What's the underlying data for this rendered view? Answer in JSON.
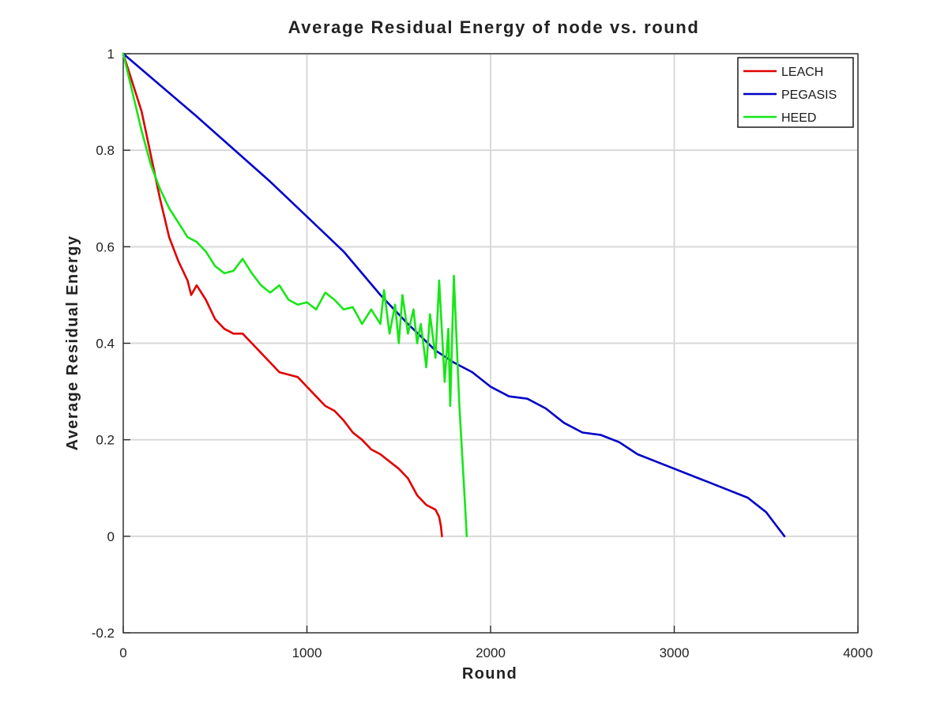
{
  "chart_data": {
    "type": "line",
    "title": "Average Residual Energy of node vs. round",
    "xlabel": "Round",
    "ylabel": "Average Residual Energy",
    "xlim": [
      0,
      4000
    ],
    "ylim": [
      -0.2,
      1
    ],
    "xticks": [
      0,
      1000,
      2000,
      3000,
      4000
    ],
    "xtick_labels": [
      "0",
      "1000",
      "2000",
      "3000",
      "4000"
    ],
    "yticks": [
      -0.2,
      0,
      0.2,
      0.4,
      0.6,
      0.8,
      1
    ],
    "ytick_labels": [
      "-0.2",
      "0",
      "0.2",
      "0.4",
      "0.6",
      "0.8",
      "1"
    ],
    "grid": true,
    "legend_position": "top-right",
    "series": [
      {
        "name": "LEACH",
        "color": "#e00000",
        "x": [
          0,
          100,
          150,
          200,
          250,
          300,
          350,
          370,
          400,
          450,
          500,
          550,
          600,
          650,
          700,
          750,
          800,
          850,
          900,
          950,
          1000,
          1050,
          1100,
          1150,
          1200,
          1250,
          1300,
          1350,
          1400,
          1450,
          1500,
          1550,
          1600,
          1650,
          1700,
          1720,
          1730,
          1735
        ],
        "y": [
          1.0,
          0.88,
          0.79,
          0.7,
          0.62,
          0.57,
          0.53,
          0.5,
          0.52,
          0.49,
          0.45,
          0.43,
          0.42,
          0.42,
          0.4,
          0.38,
          0.36,
          0.34,
          0.335,
          0.33,
          0.31,
          0.29,
          0.27,
          0.26,
          0.24,
          0.215,
          0.2,
          0.18,
          0.17,
          0.155,
          0.14,
          0.12,
          0.085,
          0.065,
          0.055,
          0.04,
          0.02,
          0.0
        ]
      },
      {
        "name": "PEGASIS",
        "color": "#0000c8",
        "x": [
          0,
          400,
          800,
          1200,
          1400,
          1550,
          1700,
          1800,
          1900,
          2000,
          2100,
          2200,
          2300,
          2400,
          2500,
          2600,
          2700,
          2800,
          2900,
          3000,
          3100,
          3200,
          3300,
          3400,
          3500,
          3560,
          3600
        ],
        "y": [
          1.0,
          0.87,
          0.735,
          0.59,
          0.5,
          0.44,
          0.385,
          0.36,
          0.34,
          0.31,
          0.29,
          0.285,
          0.265,
          0.235,
          0.215,
          0.21,
          0.195,
          0.17,
          0.155,
          0.14,
          0.125,
          0.11,
          0.095,
          0.08,
          0.05,
          0.02,
          0.0
        ]
      },
      {
        "name": "HEED",
        "color": "#17e617",
        "x": [
          0,
          100,
          150,
          200,
          250,
          300,
          350,
          400,
          450,
          500,
          550,
          600,
          650,
          700,
          750,
          800,
          850,
          900,
          950,
          1000,
          1050,
          1100,
          1150,
          1200,
          1250,
          1300,
          1350,
          1400,
          1420,
          1450,
          1480,
          1500,
          1520,
          1550,
          1580,
          1600,
          1620,
          1650,
          1670,
          1700,
          1720,
          1750,
          1770,
          1780,
          1800,
          1830,
          1860,
          1870
        ],
        "y": [
          1.0,
          0.84,
          0.77,
          0.72,
          0.68,
          0.65,
          0.62,
          0.61,
          0.59,
          0.56,
          0.545,
          0.55,
          0.575,
          0.545,
          0.52,
          0.505,
          0.52,
          0.49,
          0.48,
          0.485,
          0.47,
          0.505,
          0.49,
          0.47,
          0.475,
          0.44,
          0.47,
          0.44,
          0.51,
          0.42,
          0.48,
          0.4,
          0.5,
          0.42,
          0.47,
          0.4,
          0.44,
          0.35,
          0.46,
          0.37,
          0.53,
          0.32,
          0.43,
          0.27,
          0.54,
          0.27,
          0.07,
          0.0
        ]
      }
    ]
  }
}
